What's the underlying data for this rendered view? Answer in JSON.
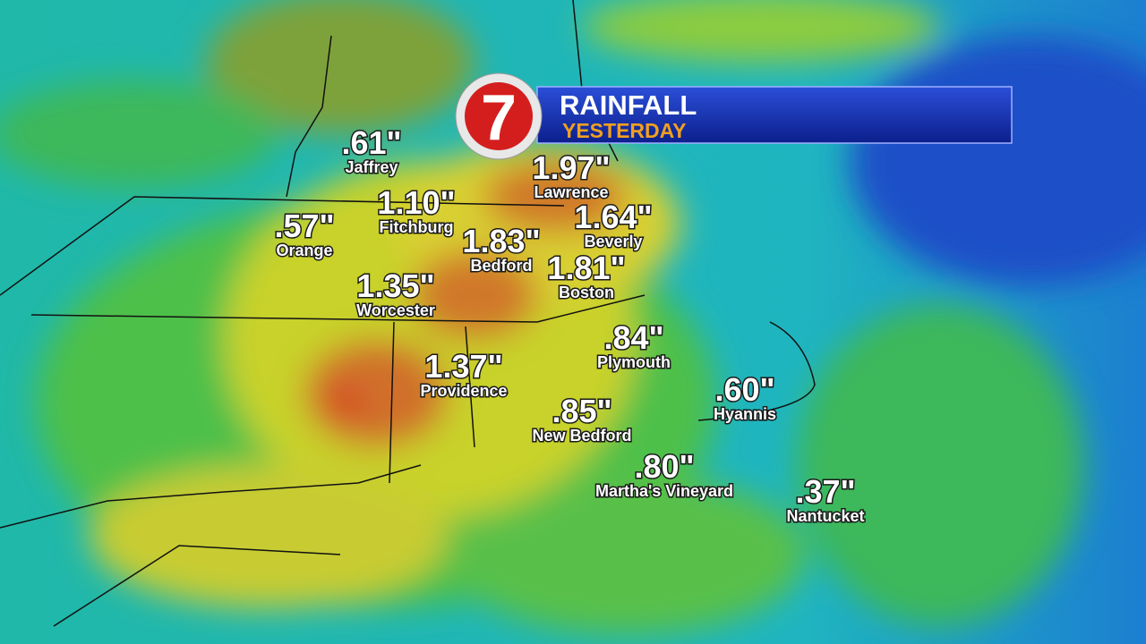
{
  "header": {
    "logo": "7",
    "title": "RAINFALL",
    "subtitle": "YESTERDAY"
  },
  "locations": [
    {
      "amount": ".61\"",
      "name": "Jaffrey"
    },
    {
      "amount": "1.97\"",
      "name": "Lawrence"
    },
    {
      "amount": "1.10\"",
      "name": "Fitchburg"
    },
    {
      "amount": "1.64\"",
      "name": "Beverly"
    },
    {
      "amount": ".57\"",
      "name": "Orange"
    },
    {
      "amount": "1.83\"",
      "name": "Bedford"
    },
    {
      "amount": "1.81\"",
      "name": "Boston"
    },
    {
      "amount": "1.35\"",
      "name": "Worcester"
    },
    {
      "amount": ".84\"",
      "name": "Plymouth"
    },
    {
      "amount": "1.37\"",
      "name": "Providence"
    },
    {
      "amount": ".60\"",
      "name": "Hyannis"
    },
    {
      "amount": ".85\"",
      "name": "New Bedford"
    },
    {
      "amount": ".80\"",
      "name": "Martha's Vineyard"
    },
    {
      "amount": ".37\"",
      "name": "Nantucket"
    }
  ]
}
